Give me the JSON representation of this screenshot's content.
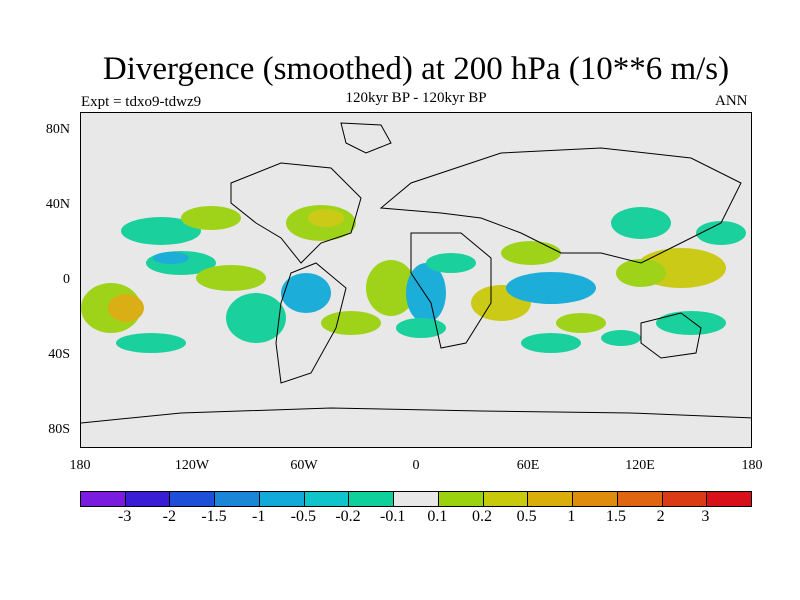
{
  "title": "Divergence (smoothed) at 200 hPa (10**6 m/s)",
  "experiment": "Expt = tdxo9-tdwz9",
  "subtitle": "120kyr BP - 120kyr BP",
  "season": "ANN",
  "axes": {
    "y_ticks": [
      "80N",
      "40N",
      "0",
      "40S",
      "80S"
    ],
    "x_ticks": [
      "180",
      "120W",
      "60W",
      "0",
      "60E",
      "120E",
      "180"
    ]
  },
  "colorbar": {
    "colors": [
      "#7a1ce0",
      "#3a1ed6",
      "#1d4fd8",
      "#1a86d8",
      "#12aad8",
      "#10c4cc",
      "#0fd09a",
      "#e8e8e8",
      "#9bd20e",
      "#c9c90c",
      "#d9ad0a",
      "#dd8c0c",
      "#df6510",
      "#db3a16",
      "#d8101a"
    ],
    "labels": [
      "-3",
      "-2",
      "-1.5",
      "-1",
      "-0.5",
      "-0.2",
      "-0.1",
      "0.1",
      "0.2",
      "0.5",
      "1",
      "1.5",
      "2",
      "3"
    ]
  }
}
